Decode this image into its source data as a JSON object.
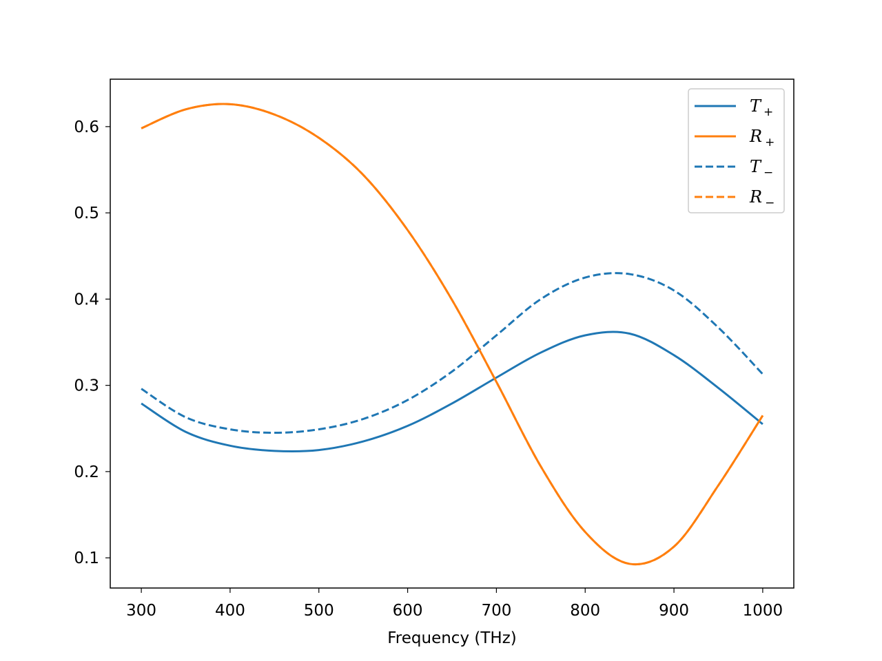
{
  "chart_data": {
    "type": "line",
    "title": "",
    "xlabel": "Frequency (THz)",
    "ylabel": "",
    "xlim": [
      265,
      1035
    ],
    "ylim": [
      0.065,
      0.655
    ],
    "xticks": [
      300,
      400,
      500,
      600,
      700,
      800,
      900,
      1000
    ],
    "xtick_labels": [
      "300",
      "400",
      "500",
      "600",
      "700",
      "800",
      "900",
      "1000"
    ],
    "yticks": [
      0.1,
      0.2,
      0.3,
      0.4,
      0.5,
      0.6
    ],
    "ytick_labels": [
      "0.1",
      "0.2",
      "0.3",
      "0.4",
      "0.5",
      "0.6"
    ],
    "grid": false,
    "legend_position": "top-right",
    "x": [
      300,
      350,
      400,
      450,
      500,
      550,
      600,
      650,
      700,
      750,
      800,
      850,
      900,
      950,
      1000
    ],
    "series": [
      {
        "name": "T+",
        "base": "T",
        "sub": "+",
        "color": "#1f77b4",
        "style": "solid",
        "values": [
          0.279,
          0.246,
          0.23,
          0.224,
          0.225,
          0.235,
          0.253,
          0.279,
          0.309,
          0.338,
          0.358,
          0.36,
          0.335,
          0.297,
          0.255
        ]
      },
      {
        "name": "R+",
        "base": "R",
        "sub": "+",
        "color": "#ff7f0e",
        "style": "solid",
        "values": [
          0.598,
          0.62,
          0.626,
          0.614,
          0.587,
          0.544,
          0.48,
          0.399,
          0.304,
          0.206,
          0.13,
          0.093,
          0.113,
          0.184,
          0.265
        ]
      },
      {
        "name": "T−",
        "base": "T",
        "sub": "−",
        "color": "#1f77b4",
        "style": "dashed",
        "values": [
          0.296,
          0.263,
          0.249,
          0.245,
          0.249,
          0.261,
          0.283,
          0.316,
          0.358,
          0.4,
          0.425,
          0.429,
          0.41,
          0.367,
          0.313
        ]
      },
      {
        "name": "R−",
        "base": "R",
        "sub": "−",
        "color": "#ff7f0e",
        "style": "dashed",
        "values": [
          0.598,
          0.62,
          0.626,
          0.614,
          0.587,
          0.544,
          0.48,
          0.399,
          0.304,
          0.206,
          0.13,
          0.093,
          0.113,
          0.184,
          0.265
        ]
      }
    ]
  }
}
